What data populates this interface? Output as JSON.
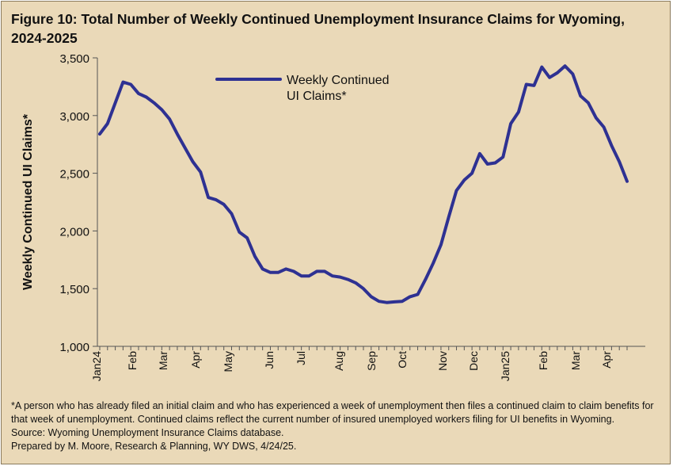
{
  "title": "Figure 10: Total Number of Weekly Continued Unemployment Insurance Claims for Wyoming,\n2024-2025",
  "chart_data": {
    "type": "line",
    "title": "Figure 10: Total Number of Weekly Continued Unemployment Insurance Claims for Wyoming, 2024-2025",
    "ylabel": "Weekly Continued UI Claims*",
    "xlabel": "",
    "ylim": [
      1000,
      3500
    ],
    "yticks": [
      1000,
      1500,
      2000,
      2500,
      3000,
      3500
    ],
    "ytick_labels": [
      "1,000",
      "1,500",
      "2,000",
      "2,500",
      "3,000",
      "3,500"
    ],
    "x_month_labels": [
      "Jan24",
      "Feb",
      "Mar",
      "Apr",
      "May",
      "Jun",
      "Jul",
      "Aug",
      "Sep",
      "Oct",
      "Nov",
      "Dec",
      "Jan25",
      "Feb",
      "Mar",
      "Apr"
    ],
    "grid": false,
    "legend_position": "top-center",
    "color": "#2e3192",
    "series": [
      {
        "name": "Weekly Continued UI Claims*",
        "values": [
          2840,
          2930,
          3110,
          3290,
          3270,
          3190,
          3160,
          3110,
          3050,
          2970,
          2840,
          2720,
          2600,
          2510,
          2290,
          2270,
          2230,
          2150,
          1990,
          1940,
          1780,
          1670,
          1640,
          1640,
          1670,
          1650,
          1610,
          1610,
          1650,
          1650,
          1610,
          1600,
          1580,
          1550,
          1500,
          1430,
          1390,
          1380,
          1385,
          1390,
          1430,
          1450,
          1580,
          1720,
          1880,
          2120,
          2350,
          2440,
          2500,
          2670,
          2580,
          2590,
          2640,
          2930,
          3030,
          3270,
          3260,
          3420,
          3330,
          3370,
          3430,
          3360,
          3170,
          3110,
          2980,
          2900,
          2740,
          2600,
          2430
        ]
      }
    ]
  },
  "footnotes": {
    "asterisk_note": "*A person who has already filed an initial claim and who has experienced a week of unemployment then files a continued claim to claim benefits for that week of unemployment. Continued claims reflect the current number of insured unemployed workers filing for UI benefits in Wyoming.",
    "source": "Source: Wyoming Unemployment Insurance Claims database.",
    "prepared_by": "Prepared by M. Moore, Research & Planning, WY DWS, 4/24/25."
  }
}
